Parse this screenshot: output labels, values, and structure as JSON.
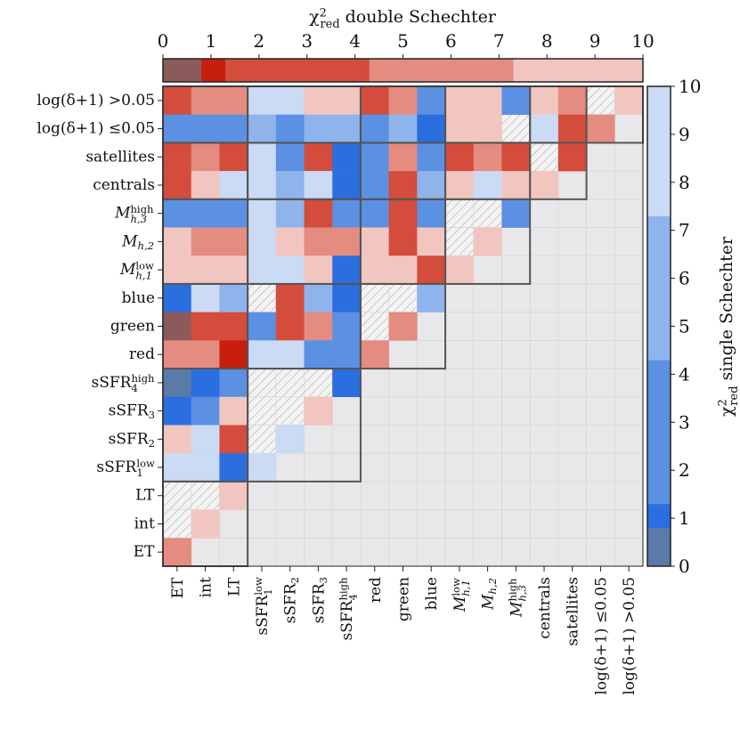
{
  "chart_data": {
    "type": "triangle-heatmap",
    "title": {
      "text": "χ",
      "sup": "2",
      "sub": "red",
      "rest": " double Schechter"
    },
    "colorbar_label": {
      "text": "χ",
      "sup": "2",
      "sub": "red",
      "rest": " single Schechter"
    },
    "row_labels": [
      {
        "text": "log(δ+1) >0.05"
      },
      {
        "text": "log(δ+1) ≤0.05"
      },
      {
        "text": "satellites"
      },
      {
        "text": "centrals"
      },
      {
        "text": "M",
        "sup": "high",
        "sub": "h,3",
        "italic": true
      },
      {
        "text": "M",
        "sub": "h,2",
        "italic": true
      },
      {
        "text": "M",
        "sup": "low",
        "sub": "h,1",
        "italic": true
      },
      {
        "text": "blue"
      },
      {
        "text": "green"
      },
      {
        "text": "red"
      },
      {
        "text": "sSFR",
        "sup": "high",
        "sub": "4"
      },
      {
        "text": "sSFR",
        "sub": "3"
      },
      {
        "text": "sSFR",
        "sub": "2"
      },
      {
        "text": "sSFR",
        "sup": "low",
        "sub": "1"
      },
      {
        "text": "LT"
      },
      {
        "text": "int"
      },
      {
        "text": "ET"
      }
    ],
    "column_labels": [
      {
        "text": "ET"
      },
      {
        "text": "int"
      },
      {
        "text": "LT"
      },
      {
        "text": "sSFR",
        "sup": "low",
        "sub": "1"
      },
      {
        "text": "sSFR",
        "sub": "2"
      },
      {
        "text": "sSFR",
        "sub": "3"
      },
      {
        "text": "sSFR",
        "sup": "high",
        "sub": "4"
      },
      {
        "text": "red"
      },
      {
        "text": "green"
      },
      {
        "text": "blue"
      },
      {
        "text": "M",
        "sup": "low",
        "sub": "h,1",
        "italic": true
      },
      {
        "text": "M",
        "sub": "h,2",
        "italic": true
      },
      {
        "text": "M",
        "sup": "high",
        "sub": "h,3",
        "italic": true
      },
      {
        "text": "centrals"
      },
      {
        "text": "satellites"
      },
      {
        "text": "log(δ+1) ≤0.05"
      },
      {
        "text": "log(δ+1) >0.05"
      }
    ],
    "double": [
      [
        2.5,
        6,
        6,
        null,
        null,
        8.5,
        8.5,
        2.5,
        6,
        null,
        8.5,
        8.5,
        null,
        8.5,
        6,
        null,
        8.5
      ],
      [
        null,
        null,
        null,
        null,
        null,
        null,
        null,
        null,
        null,
        null,
        8.5,
        8.5,
        null,
        null,
        2.5,
        6
      ],
      [
        2.5,
        6,
        2.5,
        null,
        null,
        2.5,
        null,
        null,
        6,
        null,
        2.5,
        6,
        2.5,
        null,
        2.5
      ],
      [
        2.5,
        8.5,
        null,
        null,
        null,
        null,
        null,
        null,
        2.5,
        null,
        8.5,
        null,
        8.5,
        8.5
      ],
      [
        null,
        null,
        null,
        null,
        null,
        2.5,
        null,
        null,
        2.5,
        null,
        null,
        null,
        null
      ],
      [
        8.5,
        6,
        6,
        null,
        8.5,
        6,
        6,
        8.5,
        2.5,
        8.5,
        null,
        8.5
      ],
      [
        8.5,
        8.5,
        8.5,
        null,
        null,
        8.5,
        null,
        8.5,
        8.5,
        2.5,
        8.5
      ],
      [
        null,
        null,
        null,
        null,
        2.5,
        null,
        null,
        null,
        null,
        null
      ],
      [
        0.5,
        2.5,
        2.5,
        null,
        2.5,
        6,
        null,
        null,
        6
      ],
      [
        6,
        6,
        1,
        null,
        null,
        null,
        null,
        6
      ],
      [
        null,
        null,
        null,
        null,
        null,
        null,
        null
      ],
      [
        null,
        null,
        8.5,
        null,
        null,
        8.5
      ],
      [
        8.5,
        null,
        2.5,
        null,
        null
      ],
      [
        null,
        null,
        null,
        null
      ],
      [
        null,
        null,
        8.5
      ],
      [
        null,
        8.5
      ],
      [
        6
      ]
    ],
    "single": [
      [
        null,
        null,
        null,
        8.5,
        8.5,
        null,
        null,
        null,
        null,
        2.5,
        null,
        null,
        2.5,
        null,
        null,
        null,
        null
      ],
      [
        2.5,
        2.5,
        2.5,
        5.5,
        2.5,
        5.5,
        5.5,
        2.5,
        5.5,
        1,
        null,
        null,
        null,
        8.5,
        null,
        null
      ],
      [
        null,
        null,
        null,
        8.5,
        2.5,
        null,
        1,
        2.5,
        null,
        2.5,
        null,
        null,
        null,
        null,
        null
      ],
      [
        null,
        null,
        8.5,
        8.5,
        5.5,
        8.5,
        1,
        2.5,
        null,
        5.5,
        null,
        8.5,
        null,
        null
      ],
      [
        2.5,
        2.5,
        2.5,
        8.5,
        5.5,
        null,
        2.5,
        2.5,
        null,
        2.5,
        null,
        null,
        2.5
      ],
      [
        null,
        null,
        null,
        8.5,
        null,
        null,
        null,
        null,
        null,
        null,
        null,
        null
      ],
      [
        null,
        null,
        null,
        8.5,
        8.5,
        null,
        1,
        null,
        null,
        null,
        null
      ],
      [
        1,
        8.5,
        5.5,
        null,
        null,
        5.5,
        1,
        null,
        null,
        5.5
      ],
      [
        null,
        null,
        null,
        2.5,
        null,
        null,
        2.5,
        null,
        null
      ],
      [
        null,
        null,
        null,
        8.5,
        8.5,
        2.5,
        2.5,
        null
      ],
      [
        0.4,
        1,
        2.5,
        null,
        null,
        null,
        1
      ],
      [
        1,
        2.5,
        null,
        null,
        null,
        null
      ],
      [
        null,
        8.5,
        null,
        null,
        8.5
      ],
      [
        8.5,
        8.5,
        1,
        8.5
      ],
      [
        null,
        null,
        null
      ],
      [
        null,
        null
      ],
      [
        null
      ]
    ],
    "color_bounds": [
      0,
      0.8,
      1.3,
      4.3,
      7.3,
      10
    ],
    "double_colors": [
      "#8b5a5a",
      "#c71e0e",
      "#d44c3c",
      "#e48c80",
      "#f2c6c0"
    ],
    "single_colors": [
      "#5a7aa8",
      "#2a6ee0",
      "#5b90e2",
      "#8fb4ec",
      "#cbdbf5"
    ],
    "lim": [
      0,
      10
    ],
    "ticks": [
      0,
      1,
      2,
      3,
      4,
      5,
      6,
      7,
      8,
      9,
      10
    ],
    "empty_color": "#e8e8ea",
    "hatch_missing": true
  }
}
